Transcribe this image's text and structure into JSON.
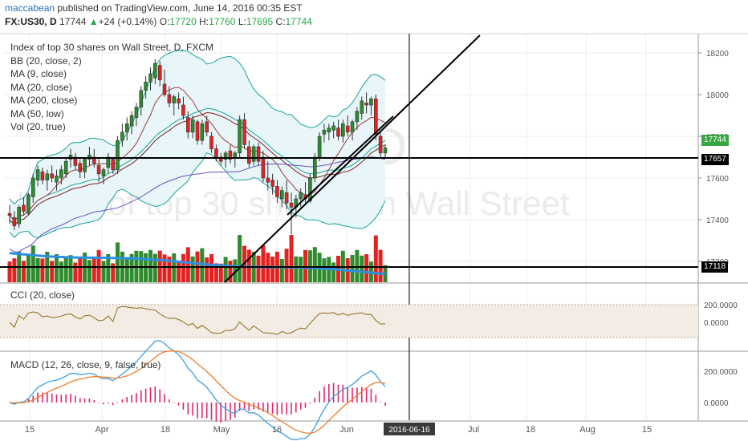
{
  "header": {
    "user": "maccabean",
    "published": " published on TradingView.com, June 14, 2016 00:35 EST",
    "symbol": "FX:US30, D",
    "last": "17744",
    "change": "+24 (+0.14%)",
    "o_label": "O:",
    "o": "17720",
    "h_label": "H:",
    "h": "17760",
    "l_label": "L:",
    "l": "17695",
    "c_label": "C:",
    "c": "17744"
  },
  "legend": {
    "title": "Index of top 30 shares on Wall Street, D, FXCM",
    "items": [
      "BB (20, close, 2)",
      "MA (9, close)",
      "MA (20, close)",
      "MA (200, close)",
      "MA (50, low)",
      "Vol (20, true)"
    ],
    "cci": "CCI (20, close)",
    "macd": "MACD (12, 26, close, 9, false, true)"
  },
  "watermark": {
    "symbol": "US30, D",
    "description": "Index of top 30 shares on Wall Street"
  },
  "colors": {
    "up": "#2e8b2e",
    "down": "#e52222",
    "bb": "#1aa39a",
    "bb_fill": "#e8f6f9",
    "ma9": "#9b3b3b",
    "ma20": "#7b1f1f",
    "ma200": "#2f8fe0",
    "ma50": "#6b4fc4",
    "cci": "#8b6b1a",
    "cci_band": "#f3ece4",
    "macd": "#3aa0e0",
    "signal": "#f07d2e",
    "hist": "#e0266e",
    "price_tag": "#3aa545"
  },
  "price_axis": {
    "ticks": [
      "18200",
      "18000",
      "17800",
      "17600",
      "17400",
      "17200"
    ],
    "tag_last": "17744",
    "tag_line1": "17657",
    "tag_line2": "17118"
  },
  "cci_axis": {
    "ticks": [
      "200.0000",
      "0.0000"
    ]
  },
  "macd_axis": {
    "ticks": [
      "200.0000",
      "0.0000"
    ]
  },
  "time_axis": {
    "ticks": [
      "15",
      "Apr",
      "18",
      "May",
      "16",
      "Jun",
      "Jul",
      "18",
      "Aug",
      "15"
    ],
    "current": "2016-06-16"
  },
  "chart_data": {
    "type": "candlestick",
    "title": "Index of top 30 shares on Wall Street, D, FXCM",
    "ylim": [
      17100,
      18270
    ],
    "candles": [
      [
        17430,
        17470,
        17380,
        17420
      ],
      [
        17410,
        17440,
        17350,
        17370
      ],
      [
        17380,
        17470,
        17360,
        17460
      ],
      [
        17470,
        17510,
        17420,
        17440
      ],
      [
        17430,
        17530,
        17420,
        17520
      ],
      [
        17510,
        17620,
        17480,
        17600
      ],
      [
        17590,
        17660,
        17560,
        17640
      ],
      [
        17630,
        17650,
        17570,
        17590
      ],
      [
        17590,
        17640,
        17540,
        17620
      ],
      [
        17620,
        17660,
        17580,
        17600
      ],
      [
        17580,
        17640,
        17540,
        17610
      ],
      [
        17600,
        17660,
        17570,
        17640
      ],
      [
        17620,
        17700,
        17600,
        17680
      ],
      [
        17690,
        17740,
        17650,
        17710
      ],
      [
        17700,
        17720,
        17640,
        17660
      ],
      [
        17670,
        17690,
        17600,
        17630
      ],
      [
        17630,
        17700,
        17600,
        17690
      ],
      [
        17690,
        17750,
        17660,
        17710
      ],
      [
        17700,
        17740,
        17650,
        17670
      ],
      [
        17660,
        17690,
        17580,
        17620
      ],
      [
        17610,
        17650,
        17570,
        17640
      ],
      [
        17650,
        17720,
        17620,
        17700
      ],
      [
        17690,
        17700,
        17620,
        17640
      ],
      [
        17640,
        17800,
        17620,
        17780
      ],
      [
        17780,
        17860,
        17750,
        17820
      ],
      [
        17820,
        17890,
        17780,
        17860
      ],
      [
        17850,
        17920,
        17810,
        17900
      ],
      [
        17890,
        17960,
        17850,
        17940
      ],
      [
        17940,
        18040,
        17900,
        18020
      ],
      [
        18020,
        18090,
        17980,
        18060
      ],
      [
        18060,
        18130,
        18020,
        18100
      ],
      [
        18080,
        18170,
        18050,
        18150
      ],
      [
        18140,
        18160,
        18040,
        18070
      ],
      [
        18050,
        18120,
        17990,
        18000
      ],
      [
        18000,
        18040,
        17940,
        17960
      ],
      [
        17960,
        18000,
        17900,
        17990
      ],
      [
        17980,
        18010,
        17930,
        17960
      ],
      [
        17950,
        17990,
        17880,
        17900
      ],
      [
        17890,
        17920,
        17790,
        17820
      ],
      [
        17820,
        17900,
        17790,
        17880
      ],
      [
        17870,
        17880,
        17760,
        17780
      ],
      [
        17780,
        17880,
        17760,
        17860
      ],
      [
        17870,
        17900,
        17800,
        17820
      ],
      [
        17800,
        17820,
        17720,
        17740
      ],
      [
        17740,
        17760,
        17680,
        17700
      ],
      [
        17700,
        17720,
        17660,
        17680
      ],
      [
        17690,
        17730,
        17650,
        17720
      ],
      [
        17730,
        17760,
        17670,
        17690
      ],
      [
        17700,
        17730,
        17650,
        17720
      ],
      [
        17720,
        17900,
        17700,
        17880
      ],
      [
        17880,
        17910,
        17740,
        17760
      ],
      [
        17750,
        17780,
        17650,
        17670
      ],
      [
        17680,
        17760,
        17660,
        17750
      ],
      [
        17750,
        17770,
        17660,
        17680
      ],
      [
        17700,
        17730,
        17580,
        17600
      ],
      [
        17600,
        17680,
        17540,
        17580
      ],
      [
        17590,
        17620,
        17520,
        17560
      ],
      [
        17560,
        17590,
        17480,
        17510
      ],
      [
        17500,
        17560,
        17460,
        17540
      ],
      [
        17530,
        17590,
        17450,
        17480
      ],
      [
        17480,
        17530,
        17330,
        17460
      ],
      [
        17460,
        17520,
        17410,
        17500
      ],
      [
        17500,
        17550,
        17460,
        17530
      ],
      [
        17520,
        17580,
        17470,
        17500
      ],
      [
        17490,
        17620,
        17480,
        17600
      ],
      [
        17600,
        17720,
        17580,
        17700
      ],
      [
        17700,
        17820,
        17680,
        17800
      ],
      [
        17810,
        17860,
        17770,
        17830
      ],
      [
        17820,
        17860,
        17780,
        17840
      ],
      [
        17830,
        17870,
        17790,
        17850
      ],
      [
        17840,
        17880,
        17780,
        17800
      ],
      [
        17800,
        17880,
        17770,
        17860
      ],
      [
        17850,
        17900,
        17800,
        17820
      ],
      [
        17820,
        17880,
        17780,
        17870
      ],
      [
        17870,
        17940,
        17830,
        17920
      ],
      [
        17910,
        17990,
        17880,
        17970
      ],
      [
        17960,
        18010,
        17910,
        17950
      ],
      [
        17950,
        17990,
        17900,
        17980
      ],
      [
        17980,
        18000,
        17780,
        17810
      ],
      [
        17800,
        17820,
        17700,
        17720
      ],
      [
        17720,
        17760,
        17695,
        17744
      ]
    ]
  }
}
